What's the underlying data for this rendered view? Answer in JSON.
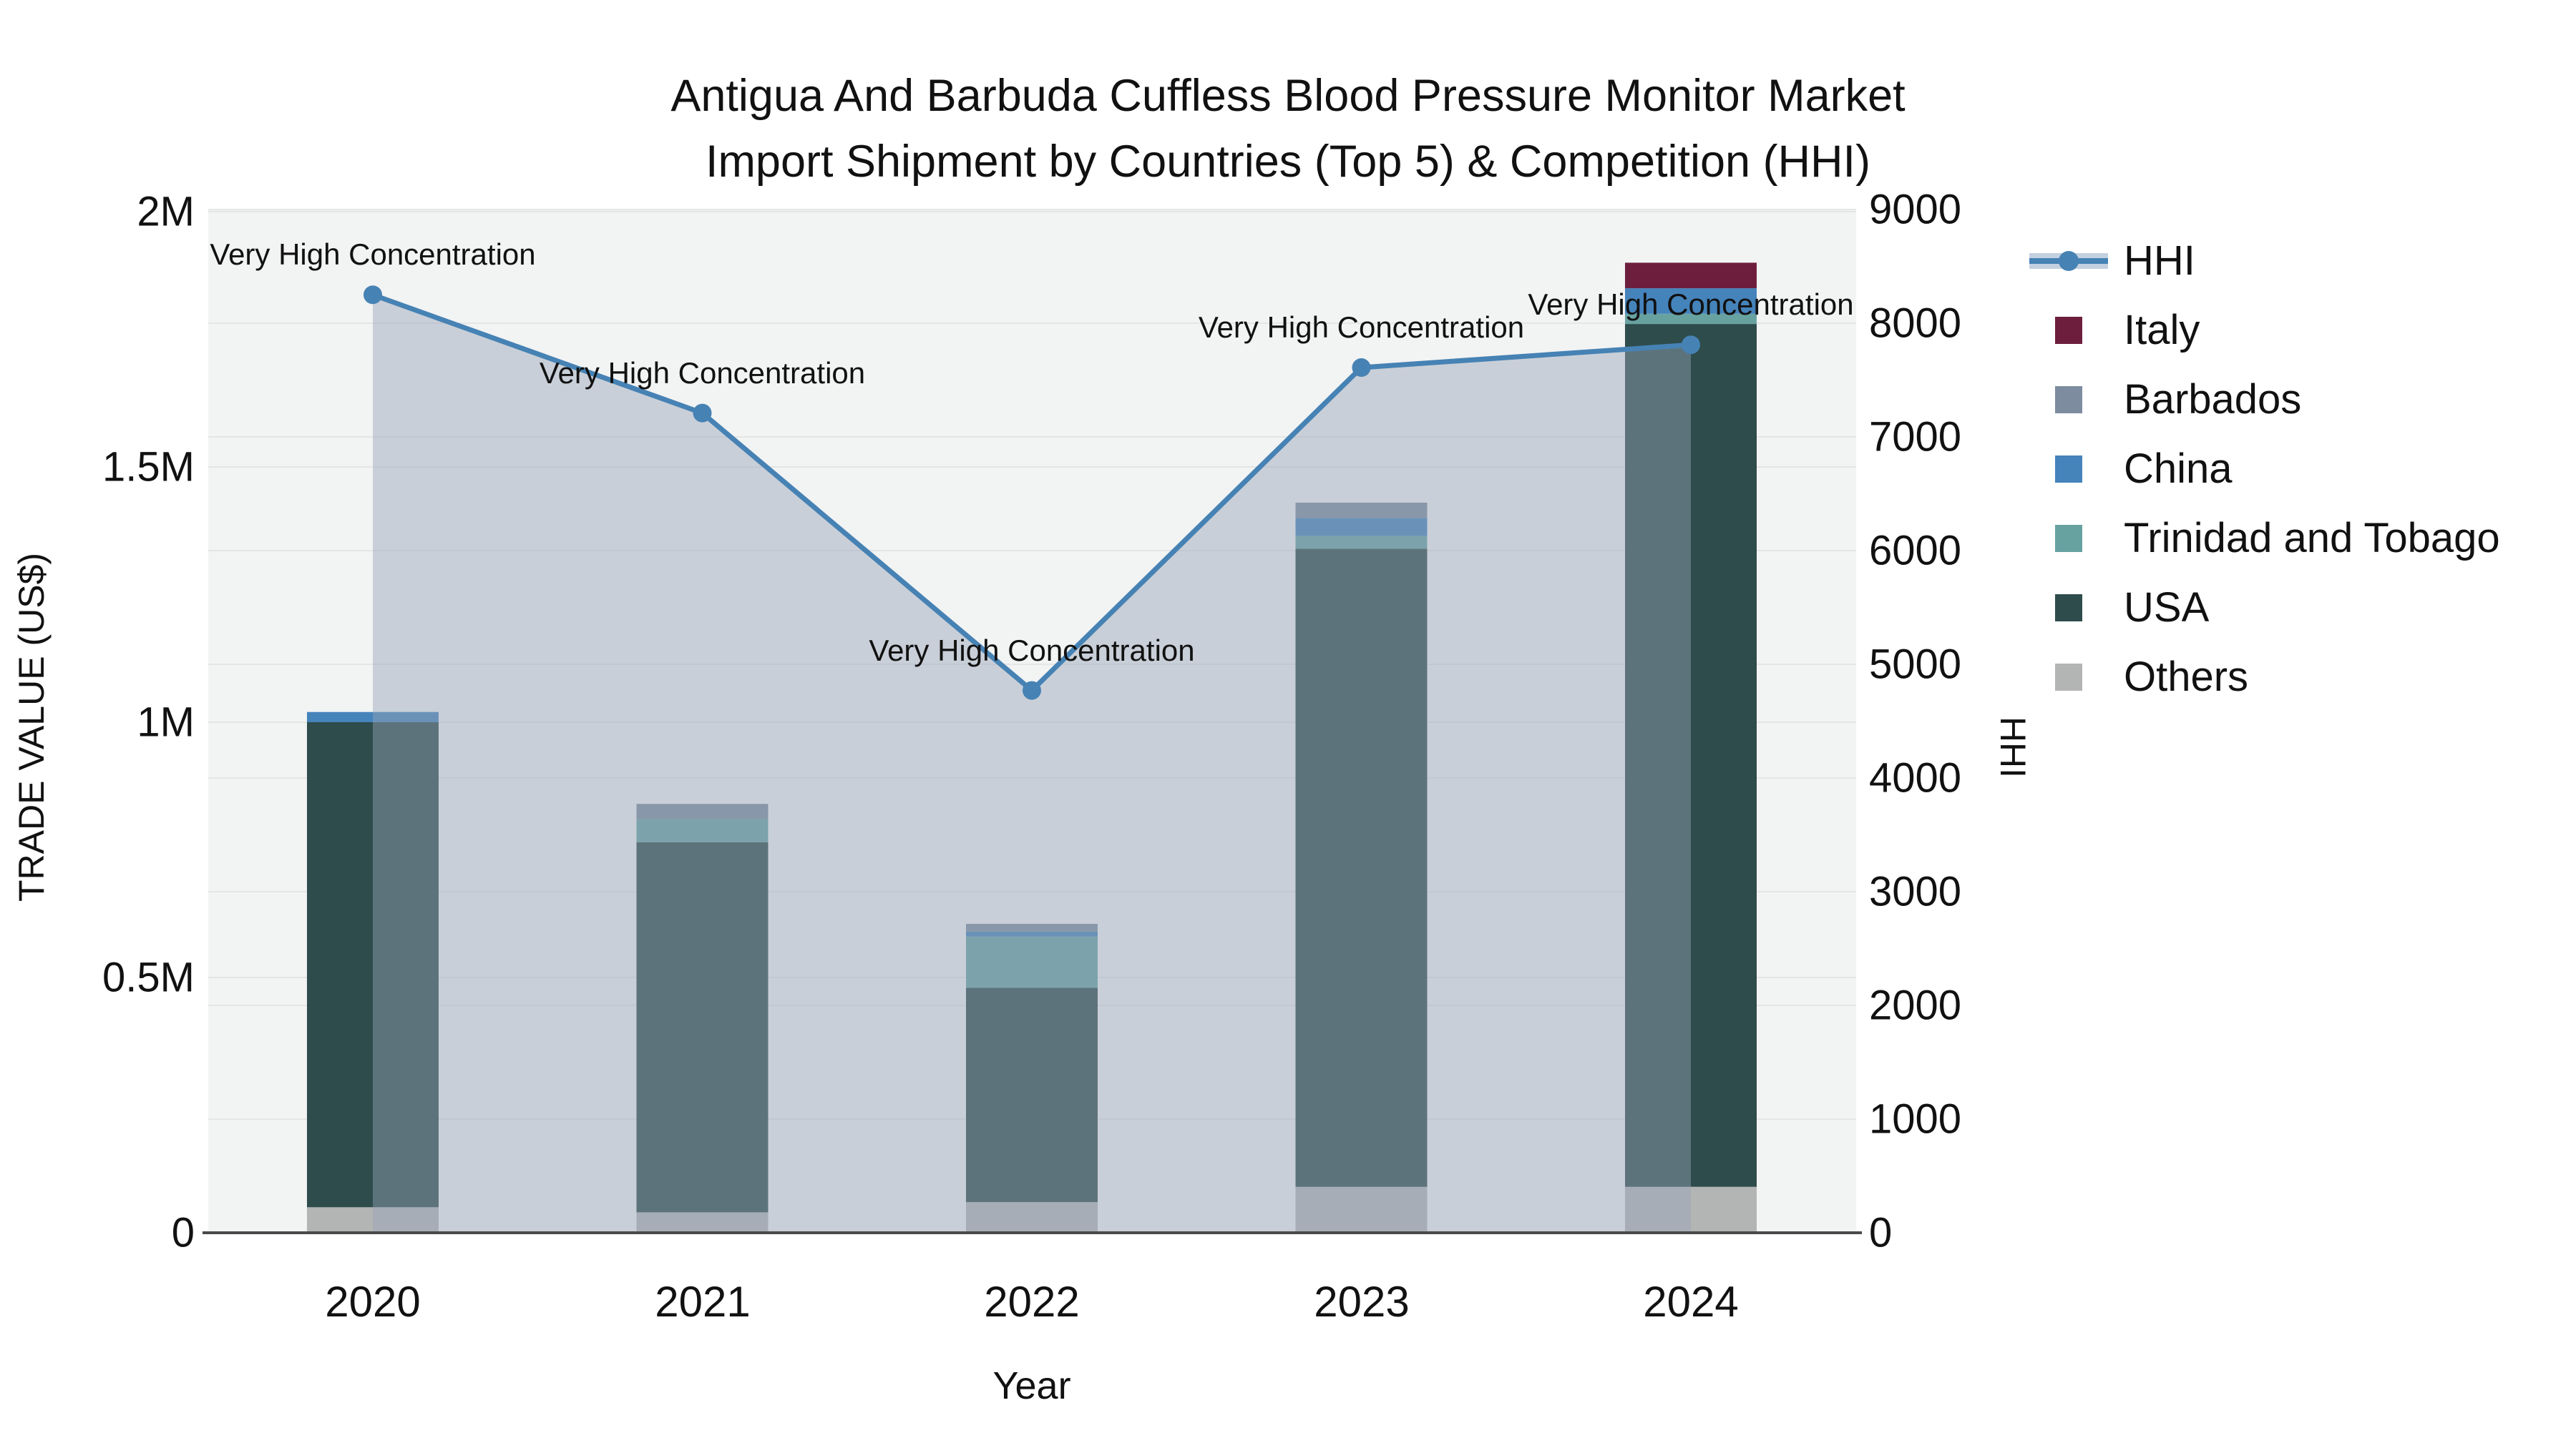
{
  "title": {
    "line1": "Antigua And Barbuda Cuffless Blood Pressure Monitor Market",
    "line2": "Import Shipment by Countries (Top 5) & Competition (HHI)"
  },
  "chart_data": {
    "type": "stacked-bar+line",
    "title": "Antigua And Barbuda Cuffless Blood Pressure Monitor Market Import Shipment by Countries (Top 5) & Competition (HHI)",
    "xlabel": "Year",
    "ylabel_left": "TRADE VALUE (US$)",
    "ylabel_right": "HHI",
    "categories": [
      "2020",
      "2021",
      "2022",
      "2023",
      "2024"
    ],
    "ylim_left": [
      0,
      2000000
    ],
    "ylim_right": [
      0,
      9000
    ],
    "y_left_ticks": [
      "2M",
      "1.5M",
      "1M",
      "0.5M",
      "0"
    ],
    "y_right_ticks": [
      "9000",
      "8000",
      "7000",
      "6000",
      "5000",
      "4000",
      "3000",
      "2000",
      "1000",
      "0"
    ],
    "grid": true,
    "legend_position": "right",
    "bar_series": [
      {
        "name": "Others",
        "color": "#B3B5B4",
        "values": [
          50000,
          40000,
          60000,
          90000,
          90000
        ]
      },
      {
        "name": "USA",
        "color": "#2E4C4B",
        "values": [
          950000,
          725000,
          420000,
          1250000,
          1690000
        ]
      },
      {
        "name": "Trinidad and Tobago",
        "color": "#67A2A1",
        "values": [
          0,
          45000,
          100000,
          25000,
          20000
        ]
      },
      {
        "name": "China",
        "color": "#4583BB",
        "values": [
          20000,
          0,
          10000,
          35000,
          50000
        ]
      },
      {
        "name": "Barbados",
        "color": "#7E8C9F",
        "values": [
          0,
          30000,
          15000,
          30000,
          0
        ]
      },
      {
        "name": "Italy",
        "color": "#6D1E3D",
        "values": [
          0,
          0,
          0,
          0,
          50000
        ]
      }
    ],
    "line_series": {
      "name": "HHI",
      "color": "#4682B4",
      "area_fill": "rgba(151,163,184,0.45)",
      "marker": "circle",
      "values": [
        8250,
        7210,
        4770,
        7610,
        7810
      ]
    },
    "annotations": [
      {
        "year": "2020",
        "text": "Very High Concentration"
      },
      {
        "year": "2021",
        "text": "Very High Concentration"
      },
      {
        "year": "2022",
        "text": "Very High Concentration"
      },
      {
        "year": "2023",
        "text": "Very High Concentration"
      },
      {
        "year": "2024",
        "text": "Very High Concentration"
      }
    ],
    "colors": {
      "plot_bg": "#F2F3F3",
      "gridline": "#E4E6E6",
      "axis_line": "#4A4A4A",
      "text": "#111111"
    }
  },
  "legend": {
    "items": [
      {
        "label": "HHI",
        "type": "line",
        "color": "#4682B4",
        "band_color": "#C3D0E0"
      },
      {
        "label": "Italy",
        "type": "square",
        "color": "#6D1E3D"
      },
      {
        "label": "Barbados",
        "type": "square",
        "color": "#7E8C9F"
      },
      {
        "label": "China",
        "type": "square",
        "color": "#4583BB"
      },
      {
        "label": "Trinidad and Tobago",
        "type": "square",
        "color": "#67A2A1"
      },
      {
        "label": "USA",
        "type": "square",
        "color": "#2E4C4B"
      },
      {
        "label": "Others",
        "type": "square",
        "color": "#B3B5B4"
      }
    ]
  }
}
